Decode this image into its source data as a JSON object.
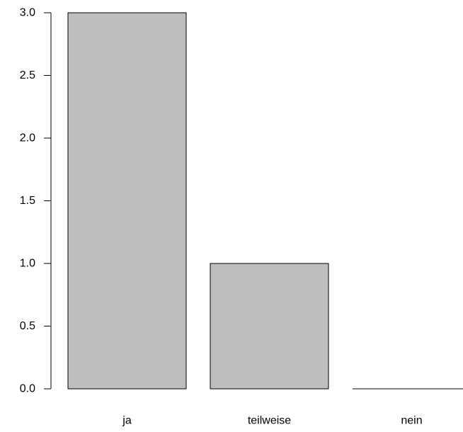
{
  "chart_data": {
    "type": "bar",
    "categories": [
      "ja",
      "teilweise",
      "nein"
    ],
    "values": [
      3,
      1,
      0
    ],
    "title": "",
    "xlabel": "",
    "ylabel": "",
    "ylim": [
      0,
      3
    ],
    "yticks": [
      0.0,
      0.5,
      1.0,
      1.5,
      2.0,
      2.5,
      3.0
    ],
    "ytick_labels": [
      "0.0",
      "0.5",
      "1.0",
      "1.5",
      "2.0",
      "2.5",
      "3.0"
    ],
    "grid": false,
    "legend": "none",
    "colors": {
      "bar_fill": "#bebebe",
      "bar_stroke": "#000000",
      "axis": "#000000"
    }
  }
}
